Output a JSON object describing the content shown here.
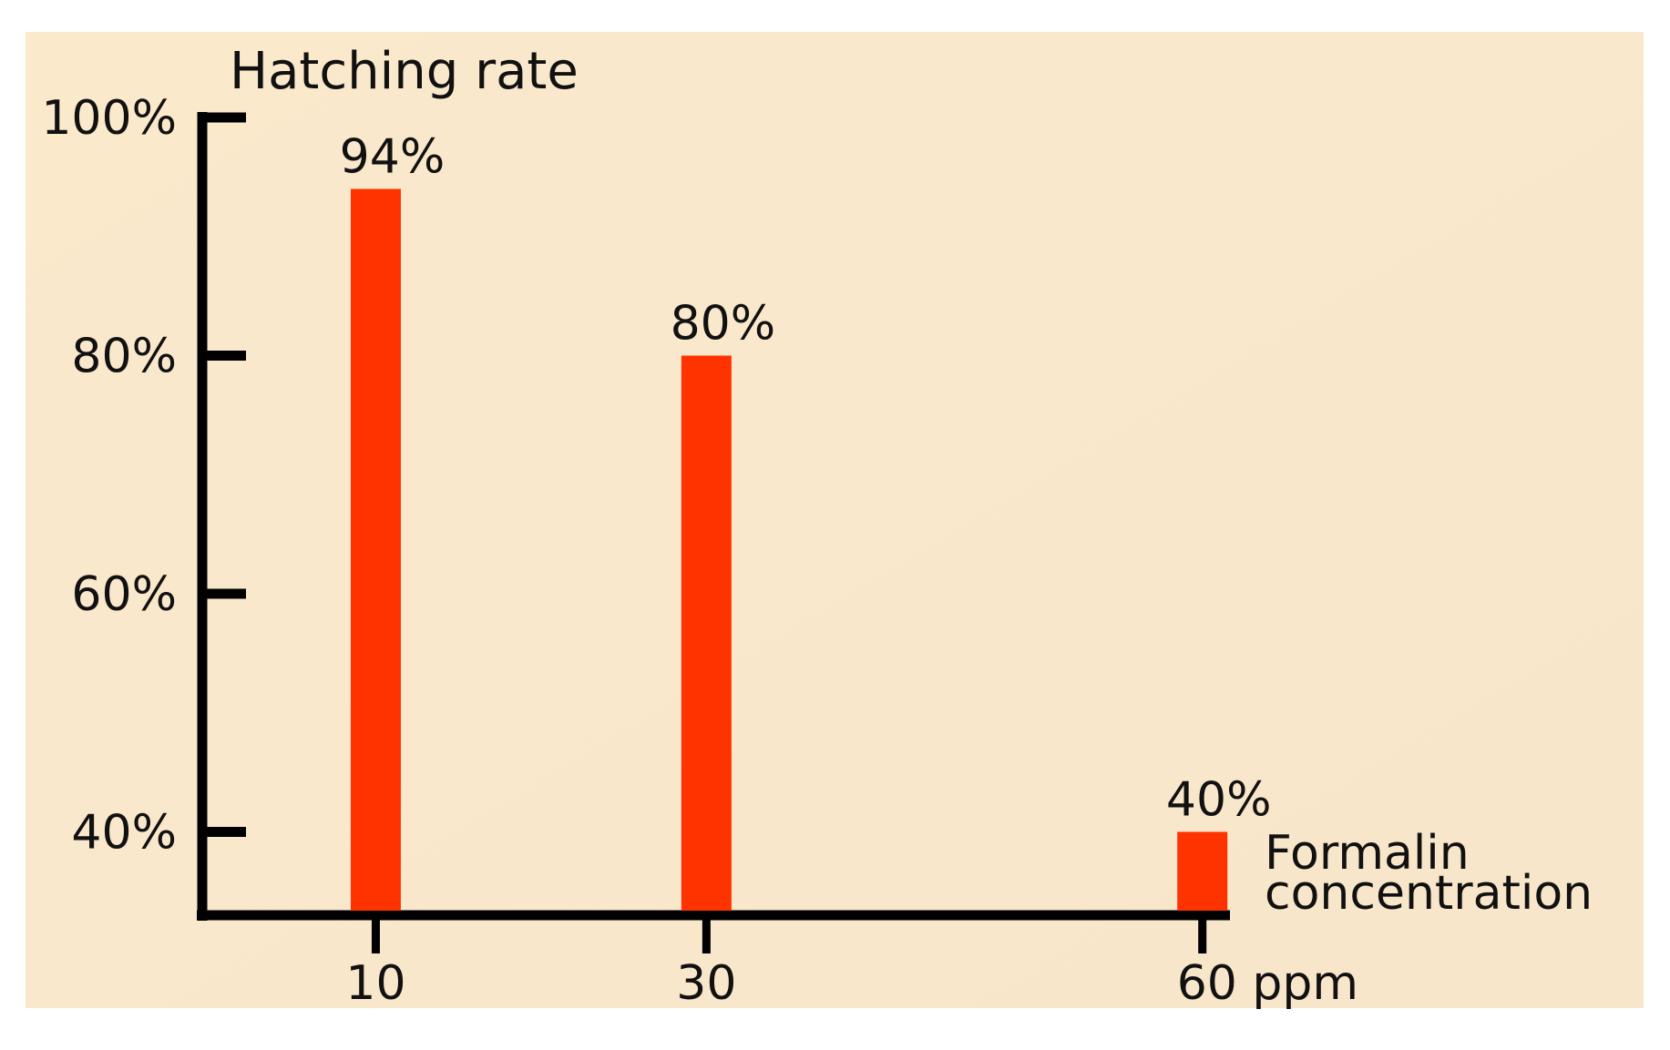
{
  "chart_data": {
    "type": "bar",
    "y_label": "Hatching rate",
    "x_label": [
      "Formalin",
      "concentration"
    ],
    "x": [
      10,
      30,
      60
    ],
    "values": [
      94,
      80,
      40
    ],
    "value_labels": [
      "94%",
      "80%",
      "40%"
    ],
    "color": "#ff3300",
    "xlim": [
      0,
      62
    ],
    "xticks": [
      10,
      30,
      {
        "value": 60,
        "label": "60 ppm"
      }
    ],
    "ylim": [
      33,
      100
    ],
    "yticks": [
      {
        "value": 40,
        "label": "40%"
      },
      {
        "value": 60,
        "label": "60%"
      },
      {
        "value": 80,
        "label": "80%"
      },
      {
        "value": 100,
        "label": "100%"
      }
    ]
  }
}
